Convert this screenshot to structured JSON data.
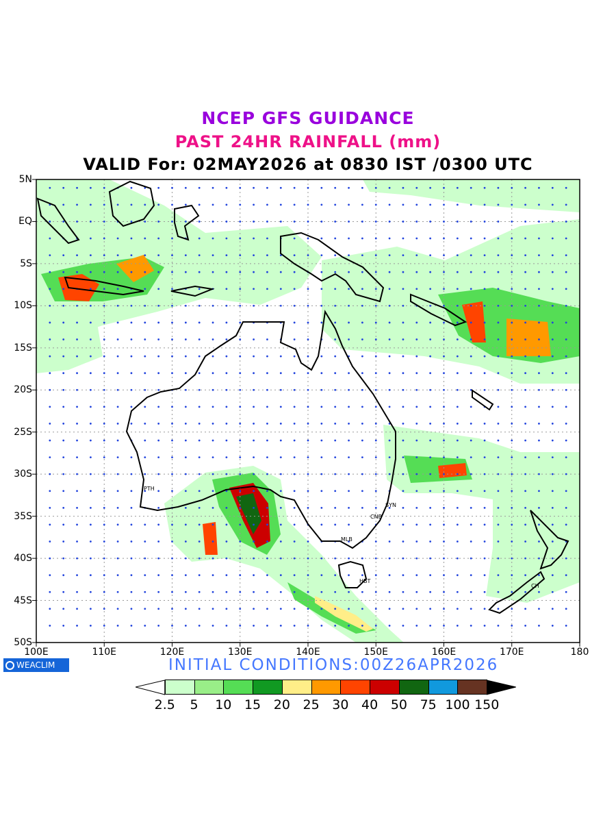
{
  "header": {
    "line1": "NCEP GFS GUIDANCE",
    "line2": "PAST 24HR RAINFALL (mm)",
    "line3": "VALID For: 02MAY2026 at 0830 IST /0300 UTC"
  },
  "map": {
    "lat_labels": [
      "5N",
      "EQ",
      "5S",
      "10S",
      "15S",
      "20S",
      "25S",
      "30S",
      "35S",
      "40S",
      "45S",
      "50S"
    ],
    "lon_labels": [
      "100E",
      "110E",
      "120E",
      "130E",
      "140E",
      "150E",
      "160E",
      "170E",
      "180"
    ],
    "cities": [
      "PTH",
      "SYN",
      "CNB",
      "MLB",
      "HBT",
      "CH"
    ],
    "extent": {
      "lon": [
        100,
        180
      ],
      "lat": [
        -50,
        5
      ]
    },
    "grid_spacing_deg": 2,
    "colors": {
      "land_outline": "#000000",
      "grid": "#999999",
      "value_text": "#2244dd"
    }
  },
  "logo": {
    "text": "WEACLIM",
    "icon": "circle-logo-icon"
  },
  "init_conditions": "INITIAL CONDITIONS:00Z26APR2026",
  "colorbar": {
    "labels": [
      "2.5",
      "5",
      "10",
      "15",
      "20",
      "25",
      "30",
      "40",
      "50",
      "75",
      "100",
      "150"
    ],
    "colors": [
      "#ffffff",
      "#ccffcc",
      "#99ee88",
      "#55dd55",
      "#119922",
      "#ffee88",
      "#ff9900",
      "#ff4400",
      "#cc0000",
      "#116611",
      "#1199dd",
      "#663322",
      "#000000"
    ]
  }
}
